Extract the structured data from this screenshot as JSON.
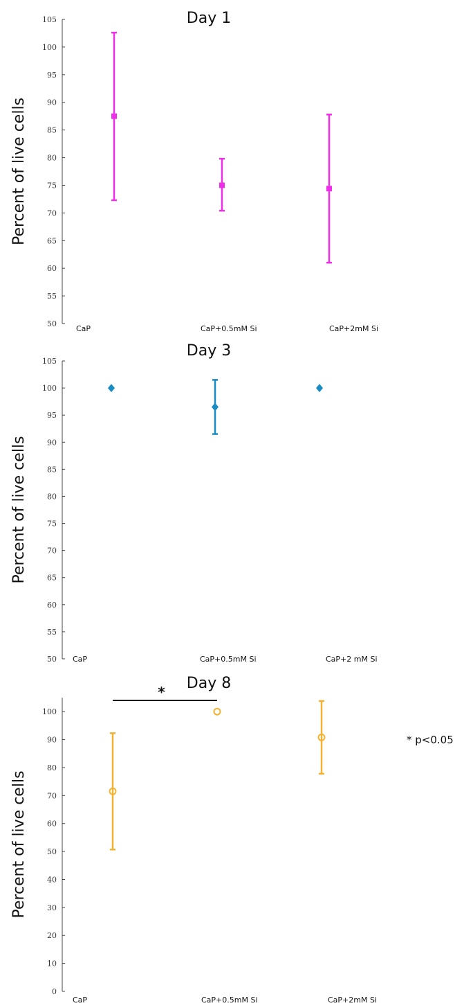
{
  "chart_data": [
    {
      "type": "scatter",
      "title": "Day 1",
      "ylabel": "Percent of live cells",
      "categories": [
        "CaP",
        "CaP+0.5mM Si",
        "CaP+2mM Si"
      ],
      "ylim": [
        50,
        105
      ],
      "yticks": [
        50,
        55,
        60,
        65,
        70,
        75,
        80,
        85,
        90,
        95,
        100,
        105
      ],
      "marker": "square",
      "color": "#ee2ee8",
      "means": [
        87.5,
        75.0,
        74.4
      ],
      "lower": [
        72.3,
        70.4,
        61.0
      ],
      "upper": [
        102.6,
        79.8,
        87.8
      ]
    },
    {
      "type": "scatter",
      "title": "Day 3",
      "ylabel": "Percent of live cells",
      "categories": [
        "CaP",
        "CaP+0.5mM Si",
        "CaP+2 mM Si"
      ],
      "ylim": [
        50,
        105
      ],
      "yticks": [
        50,
        55,
        60,
        65,
        70,
        75,
        80,
        85,
        90,
        95,
        100,
        105
      ],
      "marker": "diamond",
      "color": "#1a8cc4",
      "means": [
        100,
        96.5,
        100
      ],
      "lower": [
        100,
        91.5,
        100
      ],
      "upper": [
        100,
        101.5,
        100
      ]
    },
    {
      "type": "scatter",
      "title": "Day 8",
      "ylabel": "Percent of live cells",
      "categories": [
        "CaP",
        "CaP+0.5mM Si",
        "CaP+2mM Si"
      ],
      "ylim": [
        0,
        105
      ],
      "yticks": [
        0,
        10,
        20,
        30,
        40,
        50,
        60,
        70,
        80,
        90,
        100
      ],
      "marker": "circle",
      "color": "#f5b230",
      "means": [
        71.5,
        100,
        90.8
      ],
      "lower": [
        50.7,
        100,
        77.8
      ],
      "upper": [
        92.3,
        100,
        103.8
      ],
      "annotations": {
        "significance_mark": "*",
        "note": "* p<0.05"
      }
    }
  ]
}
